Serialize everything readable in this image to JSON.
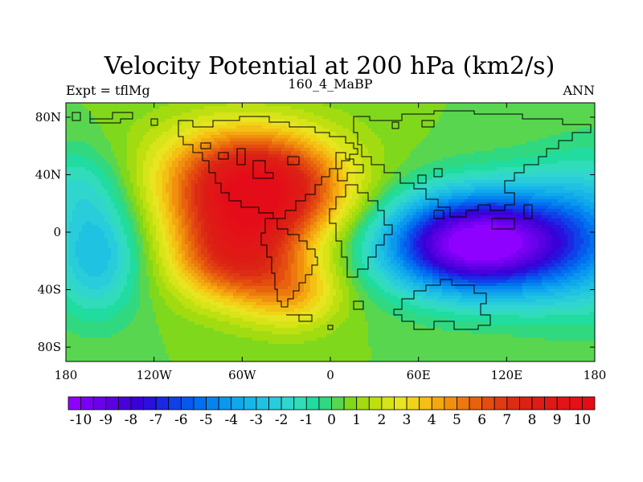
{
  "chart_data": {
    "type": "heatmap",
    "projection": "cylindrical-equidistant",
    "title": "Velocity Potential at 200 hPa (km2/s)",
    "subtitle_left": "Expt = tflMg",
    "subtitle_center": "160_4_MaBP",
    "subtitle_right": "ANN",
    "xlim": [
      -180,
      180
    ],
    "ylim": [
      -90,
      90
    ],
    "x_ticks": [
      {
        "value": -180,
        "label": "180"
      },
      {
        "value": -120,
        "label": "120W"
      },
      {
        "value": -60,
        "label": "60W"
      },
      {
        "value": 0,
        "label": "0"
      },
      {
        "value": 60,
        "label": "60E"
      },
      {
        "value": 120,
        "label": "120E"
      },
      {
        "value": 180,
        "label": "180"
      }
    ],
    "y_ticks": [
      {
        "value": 80,
        "label": "80N"
      },
      {
        "value": 40,
        "label": "40N"
      },
      {
        "value": 0,
        "label": "0"
      },
      {
        "value": -40,
        "label": "40S"
      },
      {
        "value": -80,
        "label": "80S"
      }
    ],
    "field_features": [
      {
        "kind": "maximum",
        "lon": -50,
        "lat": 25,
        "value": 9.5
      },
      {
        "kind": "maximum",
        "lon": -65,
        "lat": -18,
        "value": 8.5
      },
      {
        "kind": "minimum",
        "lon": 95,
        "lat": -8,
        "value": -10
      },
      {
        "kind": "ridge",
        "lon": -25,
        "lat": -40,
        "value": 5
      },
      {
        "kind": "trough",
        "lon": -160,
        "lat": -15,
        "value": -3
      }
    ],
    "colorbar": {
      "labels": [
        "-10",
        "-9",
        "-8",
        "-7",
        "-6",
        "-5",
        "-4",
        "-3",
        "-2",
        "-1",
        "0",
        "1",
        "2",
        "3",
        "4",
        "5",
        "6",
        "7",
        "8",
        "9",
        "10"
      ],
      "levels_per_unit": 2,
      "colors": [
        "#8E00FF",
        "#7A00F5",
        "#6A00EC",
        "#5A00E2",
        "#4A00DC",
        "#3A00D8",
        "#2A10DD",
        "#1A28E4",
        "#1040E8",
        "#0858EC",
        "#0070F0",
        "#0584F0",
        "#0A98EE",
        "#10A8EC",
        "#18B6E8",
        "#20C2E2",
        "#28CCDA",
        "#30D6CE",
        "#30DCBA",
        "#20DC9E",
        "#30D880",
        "#58D650",
        "#80D81C",
        "#A2DC10",
        "#BEE010",
        "#D6E418",
        "#E8E420",
        "#F0D418",
        "#F4C014",
        "#F4A810",
        "#F0900E",
        "#EC780E",
        "#E8620E",
        "#E44C10",
        "#E03C12",
        "#DC2C14",
        "#DC2214",
        "#DE1C16",
        "#E01816",
        "#E21418",
        "#E41018",
        "#E40C18"
      ]
    }
  }
}
